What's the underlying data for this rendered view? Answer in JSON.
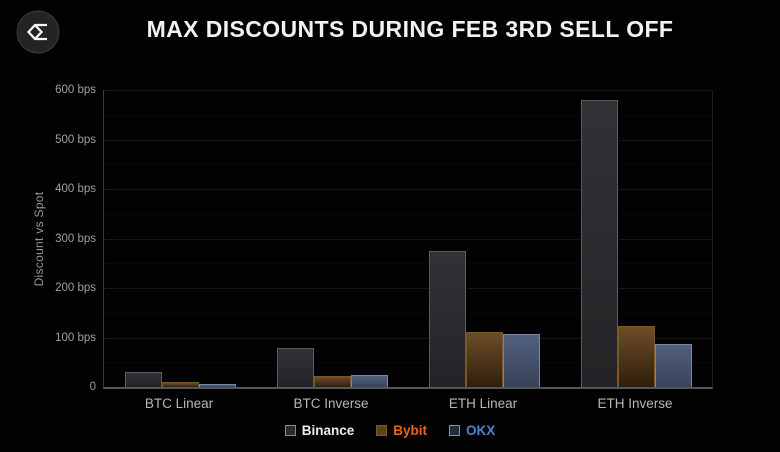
{
  "title": "MAX DISCOUNTS DURING FEB 3RD SELL OFF",
  "logo": {
    "icon": "sigma-diamond-logo"
  },
  "chart_data": {
    "type": "bar",
    "title": "MAX DISCOUNTS DURING FEB 3RD SELL OFF",
    "xlabel": "",
    "ylabel": "Discount vs Spot",
    "unit": "bps",
    "ylim": [
      0,
      600
    ],
    "grid": "horizontal dotted, major every 100 bps, faint minor every 50 bps",
    "legend_position": "bottom center",
    "y_ticks": [
      "600 bps",
      "500 bps",
      "400 bps",
      "300 bps",
      "200 bps",
      "100 bps",
      "0"
    ],
    "categories": [
      "BTC Linear",
      "BTC Inverse",
      "ETH Linear",
      "ETH Inverse"
    ],
    "series": [
      {
        "key": "binance",
        "name": "Binance",
        "values": [
          30,
          78,
          275,
          580
        ],
        "color": {
          "top": "#323236",
          "bottom": "#242427",
          "border": "#5c5c60",
          "swatch_fill": "#2c2c30",
          "swatch_border": "#8a8a8e",
          "text": "#ededed"
        }
      },
      {
        "key": "bybit",
        "name": "Bybit",
        "values": [
          10,
          22,
          112,
          123
        ],
        "color": {
          "top": "#6e4c27",
          "bottom": "#2f1f0d",
          "border": "#7b5628",
          "swatch_fill": "#5e431f",
          "swatch_border": "#7d5a28",
          "text": "#e8651a"
        }
      },
      {
        "key": "okx",
        "name": "OKX",
        "values": [
          7,
          24,
          108,
          86
        ],
        "color": {
          "top": "#51607e",
          "bottom": "#394258",
          "border": "#7585a3",
          "swatch_fill": "#232c3e",
          "swatch_border": "#8192b2",
          "text": "#4e82d6"
        }
      }
    ],
    "background": "#020202"
  }
}
